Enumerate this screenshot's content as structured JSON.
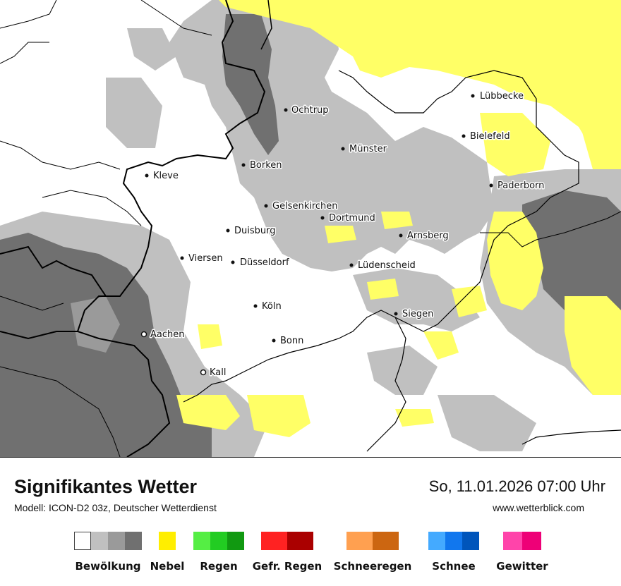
{
  "map": {
    "cities": [
      {
        "name": "Lübbecke"
      },
      {
        "name": "Ochtrup"
      },
      {
        "name": "Bielefeld"
      },
      {
        "name": "Münster"
      },
      {
        "name": "Borken"
      },
      {
        "name": "Kleve"
      },
      {
        "name": "Paderborn"
      },
      {
        "name": "Gelsenkirchen"
      },
      {
        "name": "Dortmund"
      },
      {
        "name": "Duisburg"
      },
      {
        "name": "Arnsberg"
      },
      {
        "name": "Viersen"
      },
      {
        "name": "Düsseldorf"
      },
      {
        "name": "Lüdenscheid"
      },
      {
        "name": "Köln"
      },
      {
        "name": "Siegen"
      },
      {
        "name": "Aachen"
      },
      {
        "name": "Bonn"
      },
      {
        "name": "Kall"
      }
    ]
  },
  "footer": {
    "title": "Signifikantes Wetter",
    "subtitle": "Modell: ICON-D2 03z, Deutscher Wetterdienst",
    "datetime": "So, 11.01.2026 07:00 Uhr",
    "website": "www.wetterblick.com"
  },
  "legend": [
    {
      "label": "Bewölkung",
      "colors": [
        "#ffffff",
        "#c0c0c0",
        "#9a9a9a",
        "#707070"
      ]
    },
    {
      "label": "Nebel",
      "colors": [
        "#ffee00"
      ]
    },
    {
      "label": "Regen",
      "colors": [
        "#55ee44",
        "#22cc22",
        "#119911"
      ]
    },
    {
      "label": "Gefr. Regen",
      "colors": [
        "#ff2222",
        "#aa0000"
      ]
    },
    {
      "label": "Schneeregen",
      "colors": [
        "#ffa050",
        "#cc6611"
      ]
    },
    {
      "label": "Schnee",
      "colors": [
        "#44aaff",
        "#1177ee",
        "#0055bb"
      ]
    },
    {
      "label": "Gewitter",
      "colors": [
        "#ff44aa",
        "#ee0077"
      ]
    }
  ],
  "palette": {
    "cloud_light": "#c0c0c0",
    "cloud_dark": "#707070",
    "fog": "#ffff66"
  }
}
